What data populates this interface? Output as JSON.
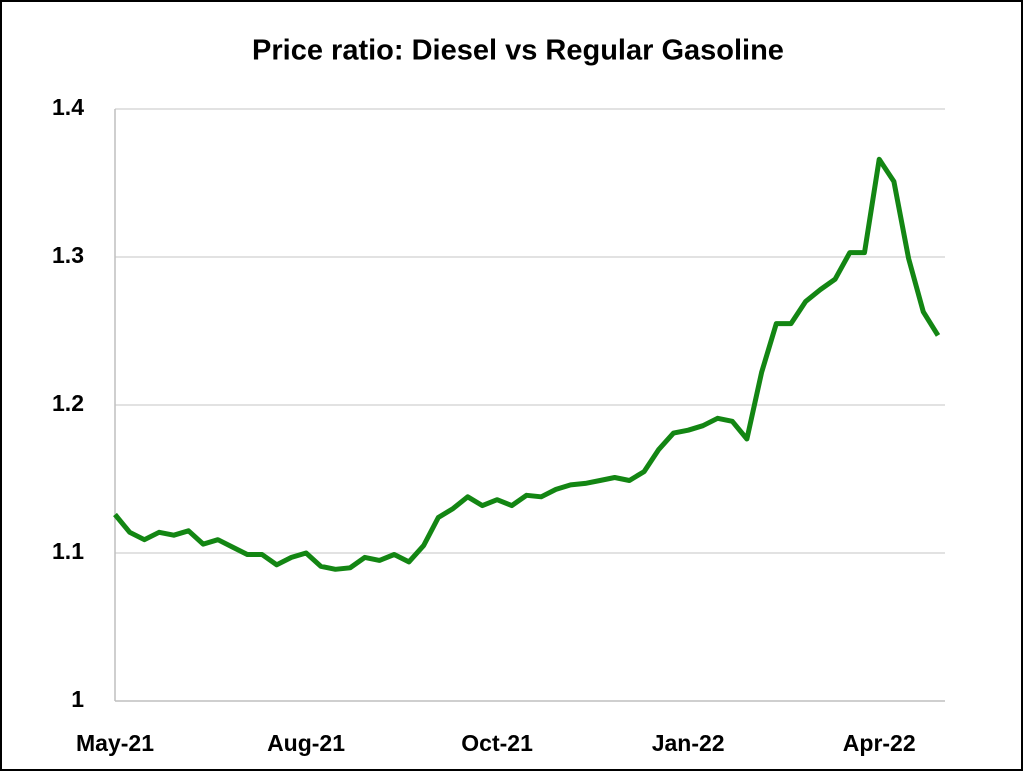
{
  "chart_data": {
    "type": "line",
    "title": "Price ratio: Diesel vs Regular Gasoline",
    "categories": [
      "May-21",
      null,
      null,
      null,
      null,
      null,
      null,
      null,
      null,
      null,
      null,
      null,
      null,
      "Aug-21",
      null,
      null,
      null,
      null,
      null,
      null,
      null,
      null,
      null,
      null,
      null,
      null,
      "Oct-21",
      null,
      null,
      null,
      null,
      null,
      null,
      null,
      null,
      null,
      null,
      null,
      null,
      "Jan-22",
      null,
      null,
      null,
      null,
      null,
      null,
      null,
      null,
      null,
      null,
      null,
      null,
      "Apr-22",
      null,
      null,
      null,
      null
    ],
    "series": [
      {
        "name": "Price ratio",
        "color": "#138613",
        "values": [
          1.126,
          1.114,
          1.109,
          1.114,
          1.112,
          1.115,
          1.106,
          1.109,
          1.104,
          1.099,
          1.099,
          1.092,
          1.097,
          1.1,
          1.091,
          1.089,
          1.09,
          1.097,
          1.095,
          1.099,
          1.094,
          1.105,
          1.124,
          1.13,
          1.138,
          1.132,
          1.136,
          1.132,
          1.139,
          1.138,
          1.143,
          1.146,
          1.147,
          1.149,
          1.151,
          1.149,
          1.155,
          1.17,
          1.181,
          1.183,
          1.186,
          1.191,
          1.189,
          1.177,
          1.222,
          1.255,
          1.255,
          1.27,
          1.278,
          1.285,
          1.303,
          1.303,
          1.366,
          1.351,
          1.299,
          1.263,
          1.247
        ]
      }
    ],
    "ylim": [
      1,
      1.4
    ],
    "yticks": [
      1,
      1.1,
      1.2,
      1.3,
      1.4
    ],
    "grid": true
  }
}
